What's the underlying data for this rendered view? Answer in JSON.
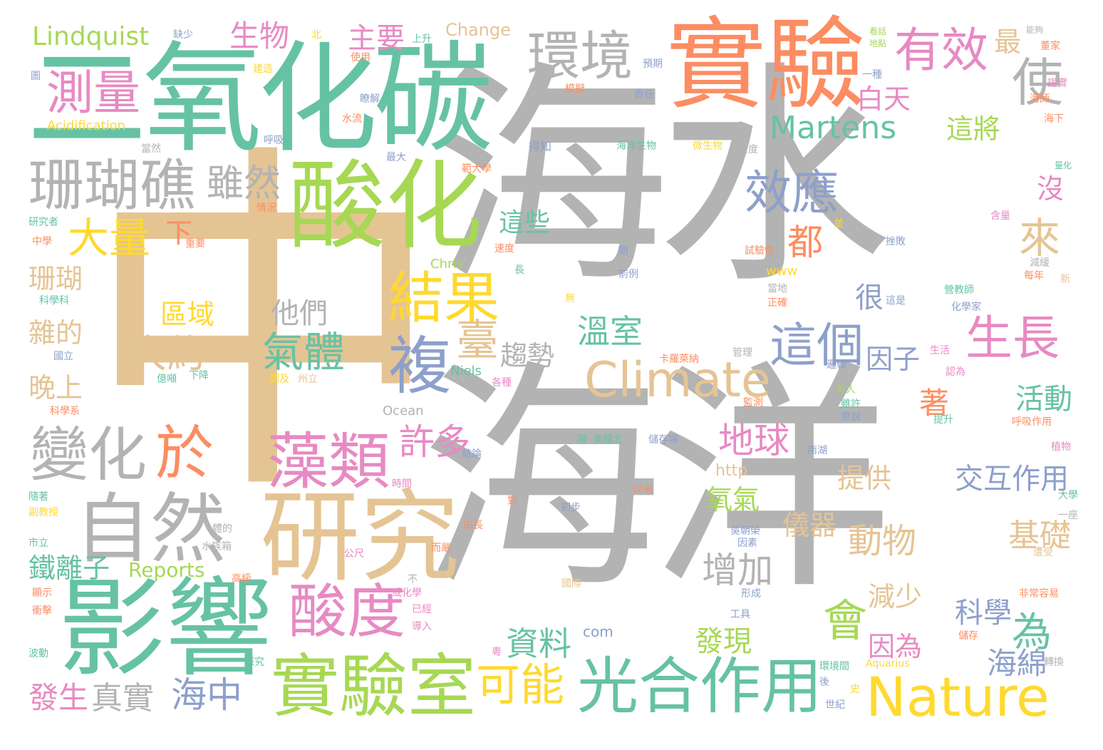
{
  "palette": {
    "gray": "#b3b3b3",
    "teal": "#66c2a5",
    "orange": "#fc8d62",
    "blue": "#8da0cb",
    "pink": "#e78ac3",
    "green": "#a6d854",
    "yellow": "#ffd92f",
    "tan": "#e5c494"
  },
  "words": [
    {
      "text": "海水",
      "color": "#b3b3b3"
    },
    {
      "text": "海洋",
      "color": "#b3b3b3"
    },
    {
      "text": "中",
      "color": "#e5c494"
    },
    {
      "text": "二氧化碳",
      "color": "#66c2a5"
    },
    {
      "text": "實驗",
      "color": "#fc8d62"
    },
    {
      "text": "酸化",
      "color": "#a6d854"
    },
    {
      "text": "影響",
      "color": "#66c2a5"
    },
    {
      "text": "研究",
      "color": "#e5c494"
    },
    {
      "text": "實驗室",
      "color": "#a6d854"
    },
    {
      "text": "光合作用",
      "color": "#66c2a5"
    },
    {
      "text": "Nature",
      "color": "#ffd92f"
    },
    {
      "text": "Climate",
      "color": "#e5c494"
    },
    {
      "text": "自然",
      "color": "#b3b3b3"
    },
    {
      "text": "變化",
      "color": "#b3b3b3"
    },
    {
      "text": "藻類",
      "color": "#e78ac3"
    },
    {
      "text": "酸度",
      "color": "#e78ac3"
    },
    {
      "text": "珊瑚礁",
      "color": "#b3b3b3"
    },
    {
      "text": "測量",
      "color": "#e78ac3"
    },
    {
      "text": "環境",
      "color": "#b3b3b3"
    },
    {
      "text": "結果",
      "color": "#ffd92f"
    },
    {
      "text": "複",
      "color": "#8da0cb"
    },
    {
      "text": "有效",
      "color": "#e78ac3"
    },
    {
      "text": "使",
      "color": "#b3b3b3"
    },
    {
      "text": "效應",
      "color": "#8da0cb"
    },
    {
      "text": "這個",
      "color": "#8da0cb"
    },
    {
      "text": "生長",
      "color": "#e78ac3"
    },
    {
      "text": "Martens",
      "color": "#66c2a5"
    },
    {
      "text": "大量",
      "color": "#ffd92f"
    },
    {
      "text": "於",
      "color": "#fc8d62"
    },
    {
      "text": "雖然",
      "color": "#b3b3b3"
    },
    {
      "text": "Lindquist",
      "color": "#a6d854"
    },
    {
      "text": "生物",
      "color": "#e78ac3"
    },
    {
      "text": "主要",
      "color": "#e78ac3"
    },
    {
      "text": "都",
      "color": "#fc8d62"
    },
    {
      "text": "來",
      "color": "#e5c494"
    },
    {
      "text": "白天",
      "color": "#e78ac3"
    },
    {
      "text": "這將",
      "color": "#a6d854"
    },
    {
      "text": "最",
      "color": "#e5c494"
    },
    {
      "text": "溫室",
      "color": "#66c2a5"
    },
    {
      "text": "臺",
      "color": "#e5c494"
    },
    {
      "text": "趨勢",
      "color": "#b3b3b3"
    },
    {
      "text": "氣體",
      "color": "#66c2a5"
    },
    {
      "text": "他們",
      "color": "#b3b3b3"
    },
    {
      "text": "區域",
      "color": "#ffd92f"
    },
    {
      "text": "大約",
      "color": "#e5c494"
    },
    {
      "text": "地球",
      "color": "#e78ac3"
    },
    {
      "text": "許多",
      "color": "#e78ac3"
    },
    {
      "text": "提供",
      "color": "#e5c494"
    },
    {
      "text": "交互作用",
      "color": "#8da0cb"
    },
    {
      "text": "活動",
      "color": "#66c2a5"
    },
    {
      "text": "因子",
      "color": "#8da0cb"
    },
    {
      "text": "很",
      "color": "#8da0cb"
    },
    {
      "text": "沒",
      "color": "#e78ac3"
    },
    {
      "text": "為",
      "color": "#66c2a5"
    },
    {
      "text": "著",
      "color": "#fc8d62"
    },
    {
      "text": "基礎",
      "color": "#e5c494"
    },
    {
      "text": "動物",
      "color": "#e5c494"
    },
    {
      "text": "儀器",
      "color": "#e5c494"
    },
    {
      "text": "氧氣",
      "color": "#a6d854"
    },
    {
      "text": "增加",
      "color": "#b3b3b3"
    },
    {
      "text": "會",
      "color": "#a6d854"
    },
    {
      "text": "減少",
      "color": "#e5c494"
    },
    {
      "text": "因為",
      "color": "#e78ac3"
    },
    {
      "text": "科學",
      "color": "#8da0cb"
    },
    {
      "text": "海綿",
      "color": "#8da0cb"
    },
    {
      "text": "發現",
      "color": "#a6d854"
    },
    {
      "text": "資料",
      "color": "#66c2a5"
    },
    {
      "text": "可能",
      "color": "#ffd92f"
    },
    {
      "text": "海中",
      "color": "#8da0cb"
    },
    {
      "text": "真實",
      "color": "#b3b3b3"
    },
    {
      "text": "發生",
      "color": "#e78ac3"
    },
    {
      "text": "鐵離子",
      "color": "#66c2a5"
    },
    {
      "text": "Reports",
      "color": "#a6d854"
    },
    {
      "text": "晚上",
      "color": "#e5c494"
    },
    {
      "text": "雜的",
      "color": "#e5c494"
    },
    {
      "text": "珊瑚",
      "color": "#e5c494"
    },
    {
      "text": "下",
      "color": "#fc8d62"
    },
    {
      "text": "這些",
      "color": "#66c2a5"
    },
    {
      "text": "Change",
      "color": "#e5c494"
    },
    {
      "text": "Acidification",
      "color": "#ffd92f"
    },
    {
      "text": "Chris",
      "color": "#a6d854"
    },
    {
      "text": "Niels",
      "color": "#66c2a5"
    },
    {
      "text": "Ocean",
      "color": "#b3b3b3"
    },
    {
      "text": "http",
      "color": "#e5c494"
    },
    {
      "text": "www",
      "color": "#ffd92f"
    },
    {
      "text": "com",
      "color": "#8da0cb"
    },
    {
      "text": "缺少",
      "color": "#8da0cb"
    },
    {
      "text": "北",
      "color": "#ffd92f"
    },
    {
      "text": "上升",
      "color": "#66c2a5"
    },
    {
      "text": "使用",
      "color": "#fc8d62"
    },
    {
      "text": "建造",
      "color": "#ffd92f"
    },
    {
      "text": "瞭解",
      "color": "#8da0cb"
    },
    {
      "text": "水流",
      "color": "#fc8d62"
    },
    {
      "text": "呼吸",
      "color": "#8da0cb"
    },
    {
      "text": "當然",
      "color": "#b3b3b3"
    },
    {
      "text": "最大",
      "color": "#8da0cb"
    },
    {
      "text": "得知",
      "color": "#8da0cb"
    },
    {
      "text": "範大學",
      "color": "#fc8d62"
    },
    {
      "text": "海洋生物",
      "color": "#66c2a5"
    },
    {
      "text": "微生物",
      "color": "#ffd92f"
    },
    {
      "text": "程度",
      "color": "#b3b3b3"
    },
    {
      "text": "侷",
      "color": "#b3b3b3"
    },
    {
      "text": "預期",
      "color": "#8da0cb"
    },
    {
      "text": "模擬",
      "color": "#fc8d62"
    },
    {
      "text": "責任",
      "color": "#8da0cb"
    },
    {
      "text": "一種",
      "color": "#8da0cb"
    },
    {
      "text": "看話",
      "color": "#a6d854"
    },
    {
      "text": "地點",
      "color": "#a6d854"
    },
    {
      "text": "能夠",
      "color": "#b3b3b3"
    },
    {
      "text": "董家",
      "color": "#fc8d62"
    },
    {
      "text": "證實",
      "color": "#e78ac3"
    },
    {
      "text": "海師",
      "color": "#fc8d62"
    },
    {
      "text": "海下",
      "color": "#fc8d62"
    },
    {
      "text": "量化",
      "color": "#66c2a5"
    },
    {
      "text": "含量",
      "color": "#e78ac3"
    },
    {
      "text": "並",
      "color": "#ffd92f"
    },
    {
      "text": "挫敗",
      "color": "#8da0cb"
    },
    {
      "text": "減緩",
      "color": "#b3b3b3"
    },
    {
      "text": "新",
      "color": "#e5c494"
    },
    {
      "text": "每年",
      "color": "#fc8d62"
    },
    {
      "text": "營教師",
      "color": "#66c2a5"
    },
    {
      "text": "化學家",
      "color": "#8da0cb"
    },
    {
      "text": "這是",
      "color": "#8da0cb"
    },
    {
      "text": "試驗性",
      "color": "#fc8d62"
    },
    {
      "text": "期",
      "color": "#8da0cb"
    },
    {
      "text": "前例",
      "color": "#8da0cb"
    },
    {
      "text": "當地",
      "color": "#b3b3b3"
    },
    {
      "text": "正確",
      "color": "#fc8d62"
    },
    {
      "text": "速度",
      "color": "#fc8d62"
    },
    {
      "text": "長",
      "color": "#66c2a5"
    },
    {
      "text": "無",
      "color": "#ffd92f"
    },
    {
      "text": "情況",
      "color": "#fc8d62"
    },
    {
      "text": "碳酸",
      "color": "#e5c494"
    },
    {
      "text": "研究者",
      "color": "#66c2a5"
    },
    {
      "text": "中學",
      "color": "#fc8d62"
    },
    {
      "text": "重要",
      "color": "#fc8d62"
    },
    {
      "text": "科學科",
      "color": "#66c2a5"
    },
    {
      "text": "國立",
      "color": "#8da0cb"
    },
    {
      "text": "科學系",
      "color": "#fc8d62"
    },
    {
      "text": "億噸",
      "color": "#66c2a5"
    },
    {
      "text": "下降",
      "color": "#66c2a5"
    },
    {
      "text": "測及",
      "color": "#ffd92f"
    },
    {
      "text": "州立",
      "color": "#e5c494"
    },
    {
      "text": "各種",
      "color": "#e78ac3"
    },
    {
      "text": "卡羅萊納",
      "color": "#fc8d62"
    },
    {
      "text": "管理",
      "color": "#b3b3b3"
    },
    {
      "text": "生活",
      "color": "#e78ac3"
    },
    {
      "text": "邏輯",
      "color": "#8da0cb"
    },
    {
      "text": "認為",
      "color": "#e78ac3"
    },
    {
      "text": "有人",
      "color": "#a6d854"
    },
    {
      "text": "監測",
      "color": "#fc8d62"
    },
    {
      "text": "雖許",
      "color": "#66c2a5"
    },
    {
      "text": "原說",
      "color": "#8da0cb"
    },
    {
      "text": "提升",
      "color": "#66c2a5"
    },
    {
      "text": "呼吸作用",
      "color": "#fc8d62"
    },
    {
      "text": "植物",
      "color": "#e78ac3"
    },
    {
      "text": "限",
      "color": "#66c2a5"
    },
    {
      "text": "美國北",
      "color": "#66c2a5"
    },
    {
      "text": "儲存場",
      "color": "#8da0cb"
    },
    {
      "text": "南湖",
      "color": "#8da0cb"
    },
    {
      "text": "結論",
      "color": "#8da0cb"
    },
    {
      "text": "時間",
      "color": "#e78ac3"
    },
    {
      "text": "對",
      "color": "#fc8d62"
    },
    {
      "text": "初步",
      "color": "#8da0cb"
    },
    {
      "text": "以來",
      "color": "#fc8d62"
    },
    {
      "text": "隨著",
      "color": "#66c2a5"
    },
    {
      "text": "副教授",
      "color": "#ffd92f"
    },
    {
      "text": "市立",
      "color": "#66c2a5"
    },
    {
      "text": "大學",
      "color": "#66c2a5"
    },
    {
      "text": "一座",
      "color": "#b3b3b3"
    },
    {
      "text": "由長",
      "color": "#fc8d62"
    },
    {
      "text": "而嚴",
      "color": "#fc8d62"
    },
    {
      "text": "吳朝榮",
      "color": "#8da0cb"
    },
    {
      "text": "因素",
      "color": "#8da0cb"
    },
    {
      "text": "體的",
      "color": "#b3b3b3"
    },
    {
      "text": "水族箱",
      "color": "#b3b3b3"
    },
    {
      "text": "公尺",
      "color": "#e78ac3"
    },
    {
      "text": "遭受",
      "color": "#e5c494"
    },
    {
      "text": "高級",
      "color": "#fc8d62"
    },
    {
      "text": "不",
      "color": "#b3b3b3"
    },
    {
      "text": "國際",
      "color": "#e5c494"
    },
    {
      "text": "或化學",
      "color": "#e78ac3"
    },
    {
      "text": "形成",
      "color": "#8da0cb"
    },
    {
      "text": "非常容易",
      "color": "#fc8d62"
    },
    {
      "text": "顯示",
      "color": "#fc8d62"
    },
    {
      "text": "衝擊",
      "color": "#fc8d62"
    },
    {
      "text": "已經",
      "color": "#e78ac3"
    },
    {
      "text": "工具",
      "color": "#8da0cb"
    },
    {
      "text": "導入",
      "color": "#e78ac3"
    },
    {
      "text": "儲存",
      "color": "#fc8d62"
    },
    {
      "text": "波動",
      "color": "#66c2a5"
    },
    {
      "text": "探究",
      "color": "#66c2a5"
    },
    {
      "text": "Aquarius",
      "color": "#ffd92f"
    },
    {
      "text": "環境間",
      "color": "#66c2a5"
    },
    {
      "text": "轉換",
      "color": "#b3b3b3"
    },
    {
      "text": "後",
      "color": "#8da0cb"
    },
    {
      "text": "史",
      "color": "#ffd92f"
    },
    {
      "text": "世紀",
      "color": "#8da0cb"
    },
    {
      "text": "粵",
      "color": "#e78ac3"
    },
    {
      "text": "圖",
      "color": "#8da0cb"
    }
  ]
}
